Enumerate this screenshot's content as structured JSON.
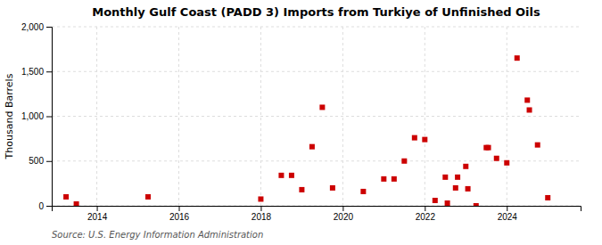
{
  "chart_data": {
    "type": "scatter",
    "title": "Monthly Gulf Coast (PADD 3) Imports from Turkiye of Unfinished Oils",
    "ylabel": "Thousand Barrels",
    "source": "Source: U.S. Energy Information Administration",
    "color": "#cc0000",
    "marker": "square",
    "grid": true,
    "xlim": [
      2012.9,
      2025.8
    ],
    "xticks": [
      2014,
      2016,
      2018,
      2020,
      2022,
      2024
    ],
    "ylim": [
      0,
      2000
    ],
    "yticks": [
      0,
      500,
      {
        "value": 1000,
        "label": "1,000"
      },
      {
        "value": 1500,
        "label": "1,500"
      },
      {
        "value": 2000,
        "label": "2,000"
      }
    ],
    "x": [
      2013.25,
      2013.5,
      2015.25,
      2018.0,
      2018.5,
      2018.75,
      2019.0,
      2019.25,
      2019.5,
      2019.75,
      2020.5,
      2021.0,
      2021.25,
      2021.5,
      2021.75,
      2022.0,
      2022.25,
      2022.5,
      2022.55,
      2022.75,
      2022.8,
      2023.0,
      2023.05,
      2023.25,
      2023.5,
      2023.55,
      2023.75,
      2024.0,
      2024.25,
      2024.5,
      2024.55,
      2024.75,
      2025.0
    ],
    "values": [
      100,
      20,
      100,
      75,
      340,
      340,
      180,
      660,
      1100,
      200,
      160,
      300,
      300,
      500,
      760,
      740,
      60,
      320,
      30,
      200,
      320,
      440,
      190,
      0,
      650,
      650,
      530,
      480,
      1650,
      1180,
      1070,
      680,
      90
    ]
  }
}
